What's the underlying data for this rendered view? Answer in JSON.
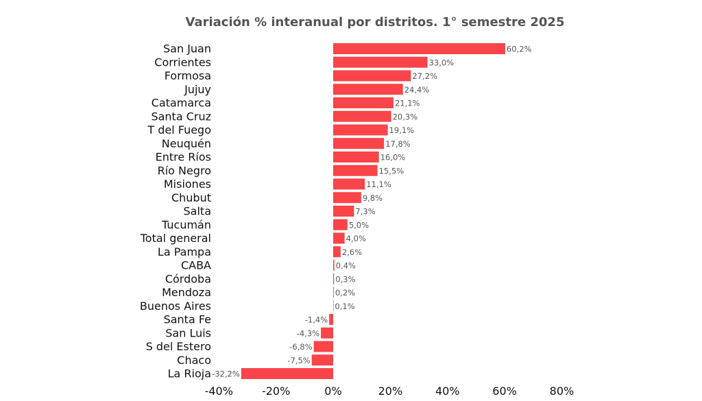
{
  "chart_data": {
    "type": "bar",
    "orientation": "horizontal",
    "title": "Variación % interanual por distritos. 1° semestre 2025",
    "xlabel": "",
    "ylabel": "",
    "xlim": [
      -40,
      80
    ],
    "x_ticks": [
      -40,
      -20,
      0,
      20,
      40,
      60,
      80
    ],
    "x_tick_labels": [
      "-40%",
      "-20%",
      "0%",
      "20%",
      "40%",
      "60%",
      "80%"
    ],
    "grid": false,
    "bar_color": "#f94449",
    "categories": [
      "San Juan",
      "Corrientes",
      "Formosa",
      "Jujuy",
      "Catamarca",
      "Santa Cruz",
      "T del Fuego",
      "Neuquén",
      "Entre Ríos",
      "Río Negro",
      "Misiones",
      "Chubut",
      "Salta",
      "Tucumán",
      "Total general",
      "La Pampa",
      "CABA",
      "Córdoba",
      "Mendoza",
      "Buenos Aires",
      "Santa Fe",
      "San Luis",
      "S del Estero",
      "Chaco",
      "La Rioja"
    ],
    "values": [
      60.2,
      33.0,
      27.2,
      24.4,
      21.1,
      20.3,
      19.1,
      17.8,
      16.0,
      15.5,
      11.1,
      9.8,
      7.3,
      5.0,
      4.0,
      2.6,
      0.4,
      0.3,
      0.2,
      0.1,
      -1.4,
      -4.3,
      -6.8,
      -7.5,
      -32.2
    ],
    "value_labels": [
      "60,2%",
      "33,0%",
      "27,2%",
      "24,4%",
      "21,1%",
      "20,3%",
      "19,1%",
      "17,8%",
      "16,0%",
      "15,5%",
      "11,1%",
      "9,8%",
      "7,3%",
      "5,0%",
      "4,0%",
      "2,6%",
      "0,4%",
      "0,3%",
      "0,2%",
      "0,1%",
      "-1,4%",
      "-4,3%",
      "-6,8%",
      "-7,5%",
      "-32,2%"
    ]
  }
}
